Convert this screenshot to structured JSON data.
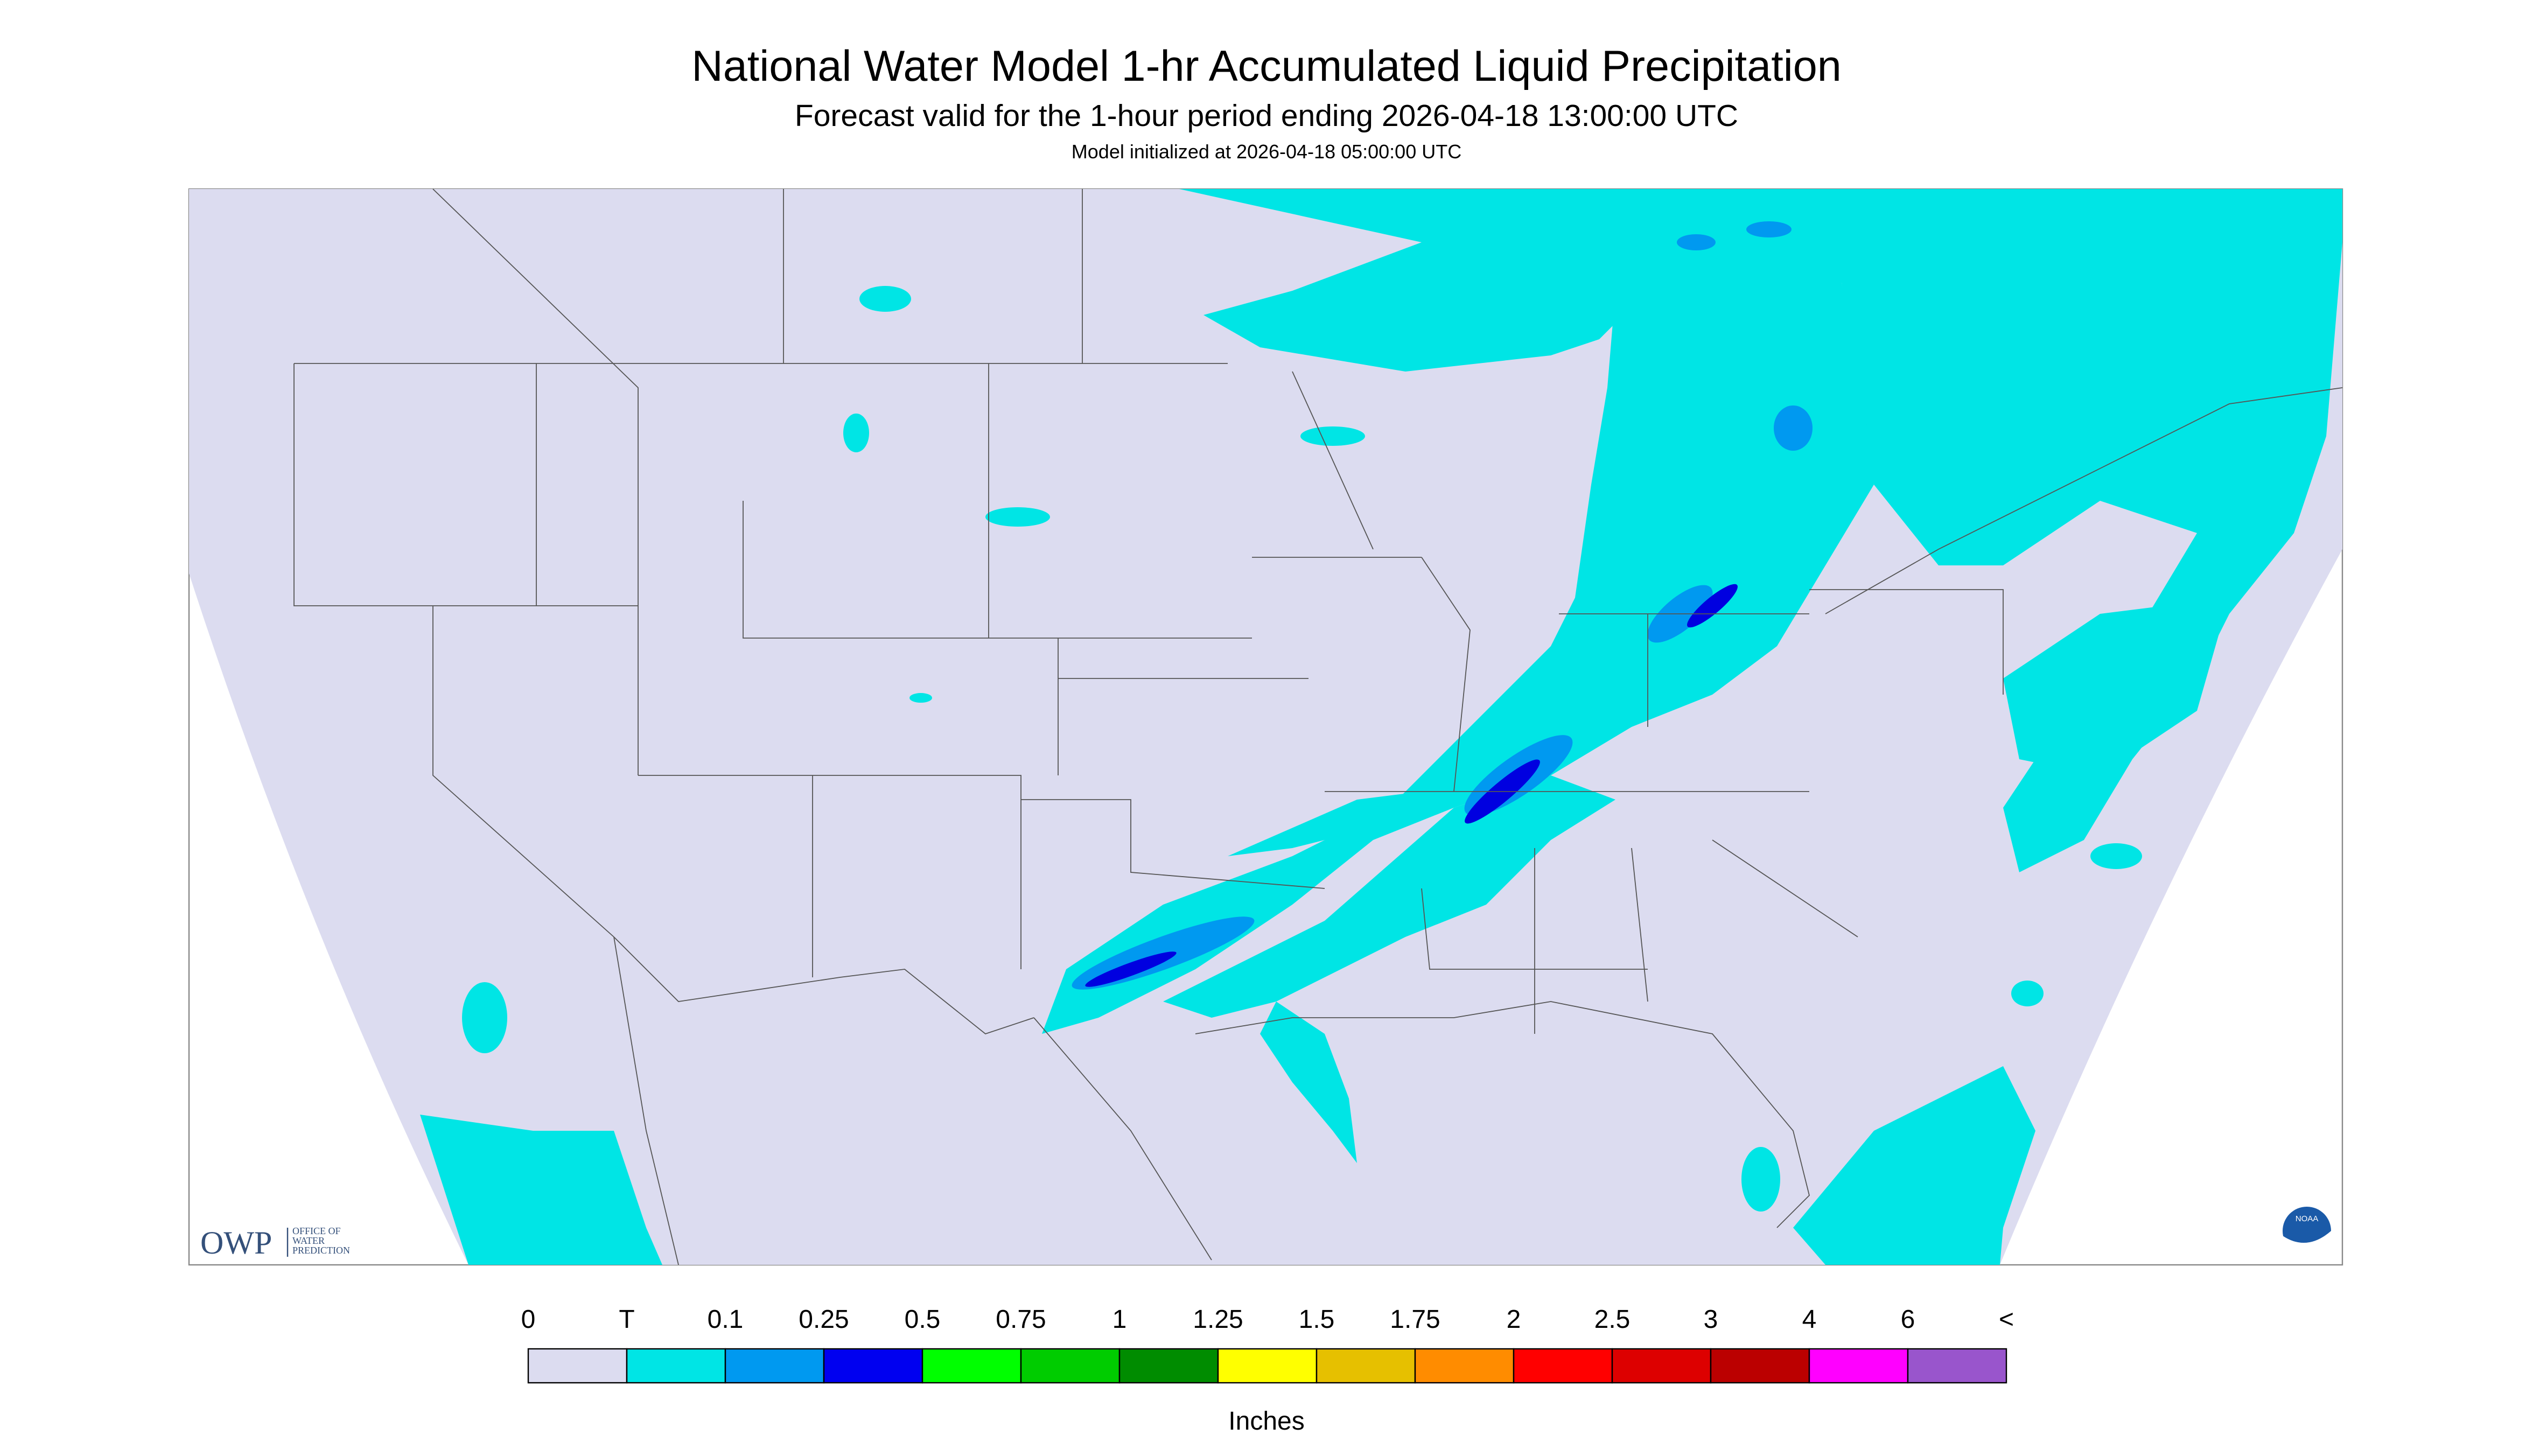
{
  "header": {
    "title": "National Water Model 1-hr Accumulated Liquid Precipitation",
    "subtitle": "Forecast valid for the 1-hour period ending 2026-04-18 13:00:00 UTC",
    "initialized": "Model initialized at 2026-04-18 05:00:00 UTC"
  },
  "logo": {
    "name": "OWP",
    "lines": [
      "OFFICE OF",
      "WATER",
      "PREDICTION"
    ],
    "noaa": "NOAA"
  },
  "legend": {
    "labels": [
      "0",
      "T",
      "0.1",
      "0.25",
      "0.5",
      "0.75",
      "1",
      "1.25",
      "1.5",
      "1.75",
      "2",
      "2.5",
      "3",
      "4",
      "6",
      "<"
    ],
    "colors": [
      "#dcdcf0",
      "#00e5e5",
      "#0099f0",
      "#0000f0",
      "#00ff00",
      "#00cc00",
      "#008c00",
      "#ffff00",
      "#e6c000",
      "#ff8c00",
      "#ff0000",
      "#dd0000",
      "#bb0000",
      "#ff00ff",
      "#9955cc"
    ],
    "units": "Inches"
  }
}
